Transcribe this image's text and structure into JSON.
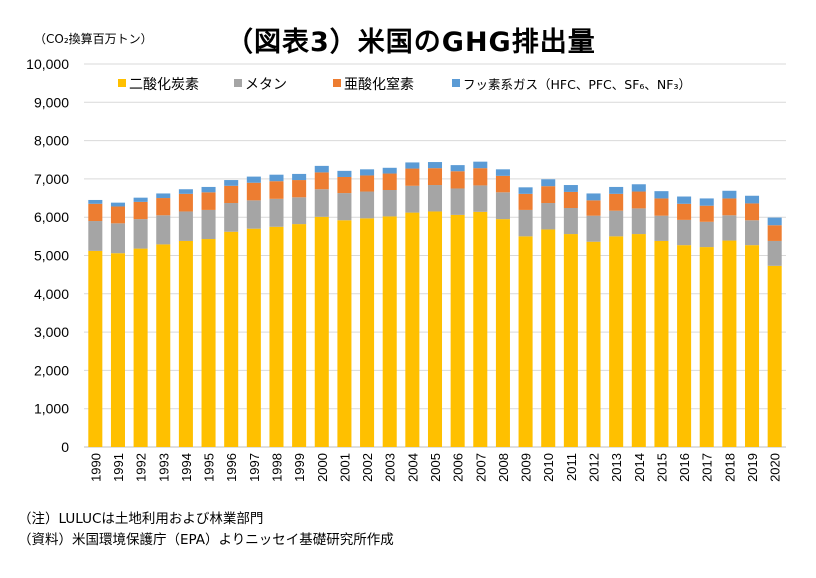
{
  "unit_label": "（CO₂換算百万トン）",
  "title": "（図表3）米国のGHG排出量",
  "notes": [
    "（注）LULUCは土地利用および林業部門",
    "（資料）米国環境保護庁（EPA）よりニッセイ基礎研究所作成"
  ],
  "colors": {
    "co2": "#FFC000",
    "ch4": "#A5A5A5",
    "n2o": "#ED7D31",
    "fgas": "#5B9BD5",
    "grid": "#D9D9D9",
    "axis": "#BFBFBF"
  },
  "chart_data": {
    "type": "bar",
    "stacked": true,
    "categories": [
      "1990",
      "1991",
      "1992",
      "1993",
      "1994",
      "1995",
      "1996",
      "1997",
      "1998",
      "1999",
      "2000",
      "2001",
      "2002",
      "2003",
      "2004",
      "2005",
      "2006",
      "2007",
      "2008",
      "2009",
      "2010",
      "2011",
      "2012",
      "2013",
      "2014",
      "2015",
      "2016",
      "2017",
      "2018",
      "2019",
      "2020"
    ],
    "series": [
      {
        "name": "二酸化炭素",
        "color_key": "co2",
        "values": [
          5120,
          5060,
          5180,
          5290,
          5380,
          5430,
          5620,
          5700,
          5750,
          5820,
          6010,
          5920,
          5970,
          6020,
          6120,
          6150,
          6060,
          6140,
          5950,
          5500,
          5680,
          5560,
          5360,
          5500,
          5560,
          5380,
          5270,
          5220,
          5390,
          5270,
          4730
        ]
      },
      {
        "name": "メタン",
        "color_key": "ch4",
        "values": [
          780,
          780,
          770,
          760,
          770,
          760,
          750,
          740,
          730,
          700,
          720,
          710,
          700,
          690,
          700,
          690,
          690,
          690,
          700,
          690,
          690,
          680,
          680,
          670,
          670,
          660,
          660,
          660,
          660,
          650,
          650
        ]
      },
      {
        "name": "亜酸化窒素",
        "color_key": "n2o",
        "values": [
          450,
          440,
          450,
          450,
          460,
          460,
          450,
          460,
          460,
          450,
          440,
          420,
          420,
          430,
          450,
          440,
          450,
          450,
          430,
          420,
          440,
          420,
          400,
          440,
          440,
          450,
          420,
          420,
          440,
          440,
          410
        ]
      },
      {
        "name": "フッ素系ガス（HFC、PFC、SF₆、NF₃）",
        "color_key": "fgas",
        "values": [
          100,
          100,
          110,
          120,
          120,
          140,
          150,
          160,
          170,
          160,
          170,
          160,
          160,
          150,
          160,
          160,
          160,
          170,
          170,
          170,
          180,
          180,
          180,
          180,
          190,
          190,
          190,
          190,
          200,
          200,
          200
        ]
      }
    ],
    "ylim": [
      0,
      10000
    ],
    "yticks": [
      "0",
      "1,000",
      "2,000",
      "3,000",
      "4,000",
      "5,000",
      "6,000",
      "7,000",
      "8,000",
      "9,000",
      "10,000"
    ],
    "grid": true,
    "legend_position": "top-inside"
  }
}
